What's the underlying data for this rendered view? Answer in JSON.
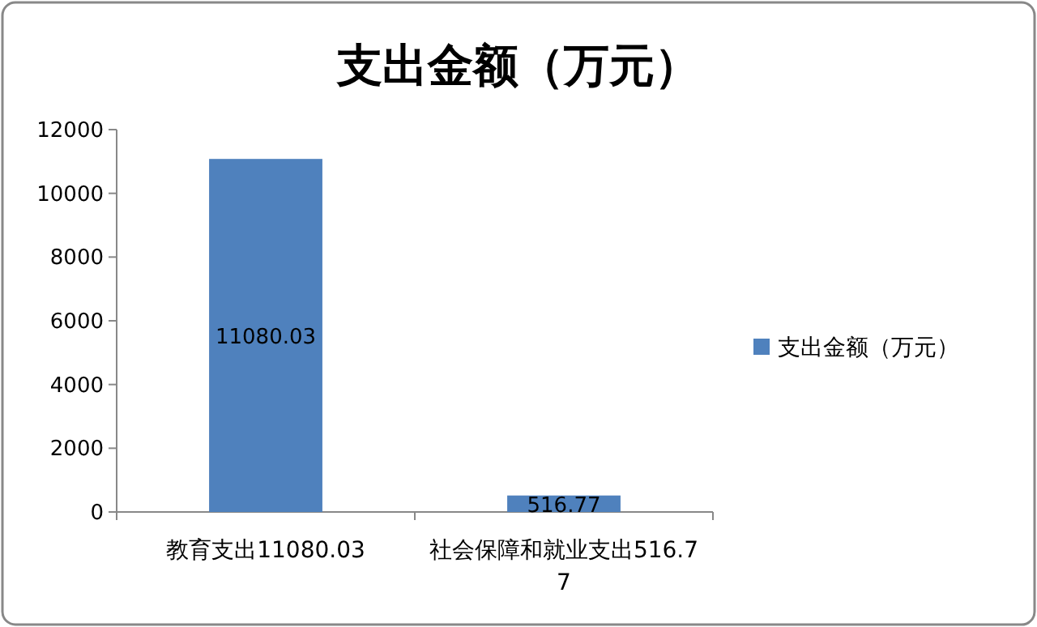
{
  "chart_data": {
    "type": "bar",
    "title": "支出金额（万元）",
    "categories": [
      "教育支出11080.03",
      "社会保障和就业支出516.77"
    ],
    "series": [
      {
        "name": "支出金额（万元）",
        "color": "#4f81bd",
        "values": [
          11080.03,
          516.77
        ]
      }
    ],
    "ylim": [
      0,
      12000
    ],
    "yticks": [
      0,
      2000,
      4000,
      6000,
      8000,
      10000,
      12000
    ],
    "data_labels": true,
    "legend": "right",
    "grid": false
  }
}
